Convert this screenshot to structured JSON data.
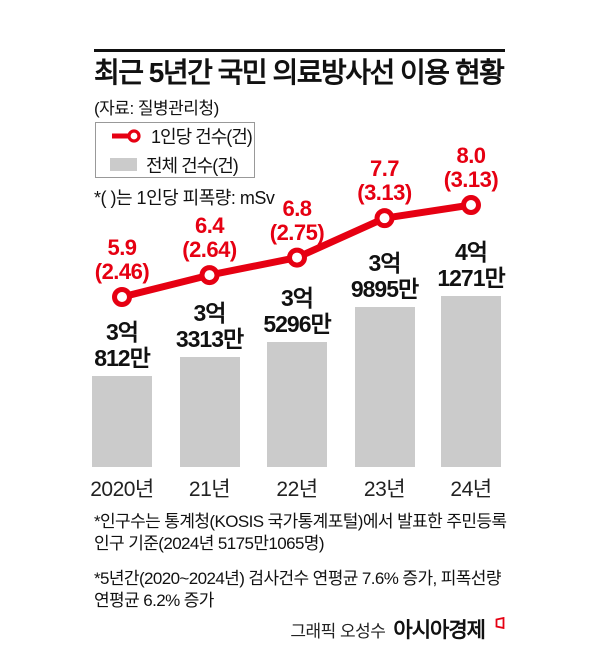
{
  "header": {
    "title": "최근 5년간 국민 의료방사선 이용 현황",
    "source": "(자료: 질병관리청)"
  },
  "legend": {
    "line_label": "1인당 건수(건)",
    "bar_label": "전체 건수(건)",
    "note": "*( )는 1인당 피폭량: mSv"
  },
  "colors": {
    "accent_red": "#e60012",
    "bar_gray": "#cbcbcb",
    "text": "#111111"
  },
  "chart_data": {
    "type": "bar+line",
    "categories": [
      "2020년",
      "21년",
      "22년",
      "23년",
      "24년"
    ],
    "series": [
      {
        "name": "1인당 건수(건)",
        "type": "line",
        "values": [
          5.9,
          6.4,
          6.8,
          7.7,
          8.0
        ],
        "labels": [
          "5.9",
          "6.4",
          "6.8",
          "7.7",
          "8.0"
        ],
        "sub_labels": [
          "(2.46)",
          "(2.64)",
          "(2.75)",
          "(3.13)",
          "(3.13)"
        ],
        "color": "#e60012"
      },
      {
        "name": "전체 건수(건)",
        "type": "bar",
        "values_10k": [
          30812,
          33313,
          35296,
          39895,
          41271
        ],
        "labels": [
          [
            "3억",
            "812만"
          ],
          [
            "3억",
            "3313만"
          ],
          [
            "3억",
            "5296만"
          ],
          [
            "3억",
            "9895만"
          ],
          [
            "4억",
            "1271만"
          ]
        ],
        "color": "#cbcbcb"
      }
    ],
    "per_capita_dose_mSv": [
      2.46,
      2.64,
      2.75,
      3.13,
      3.13
    ],
    "legend_position": "top-left",
    "grid": false,
    "bar_axis_truncated": true
  },
  "footnotes": [
    "*인구수는 통계청(KOSIS 국가통계포털)에서 발표한 주민등록인구 기준(2024년 5175만1065명)",
    "*5년간(2020~2024년) 검사건수 연평균 7.6% 증가, 피폭선량 연평균 6.2% 증가"
  ],
  "credit": {
    "prefix": "그래픽 오성수",
    "brand": "아시아경제"
  }
}
